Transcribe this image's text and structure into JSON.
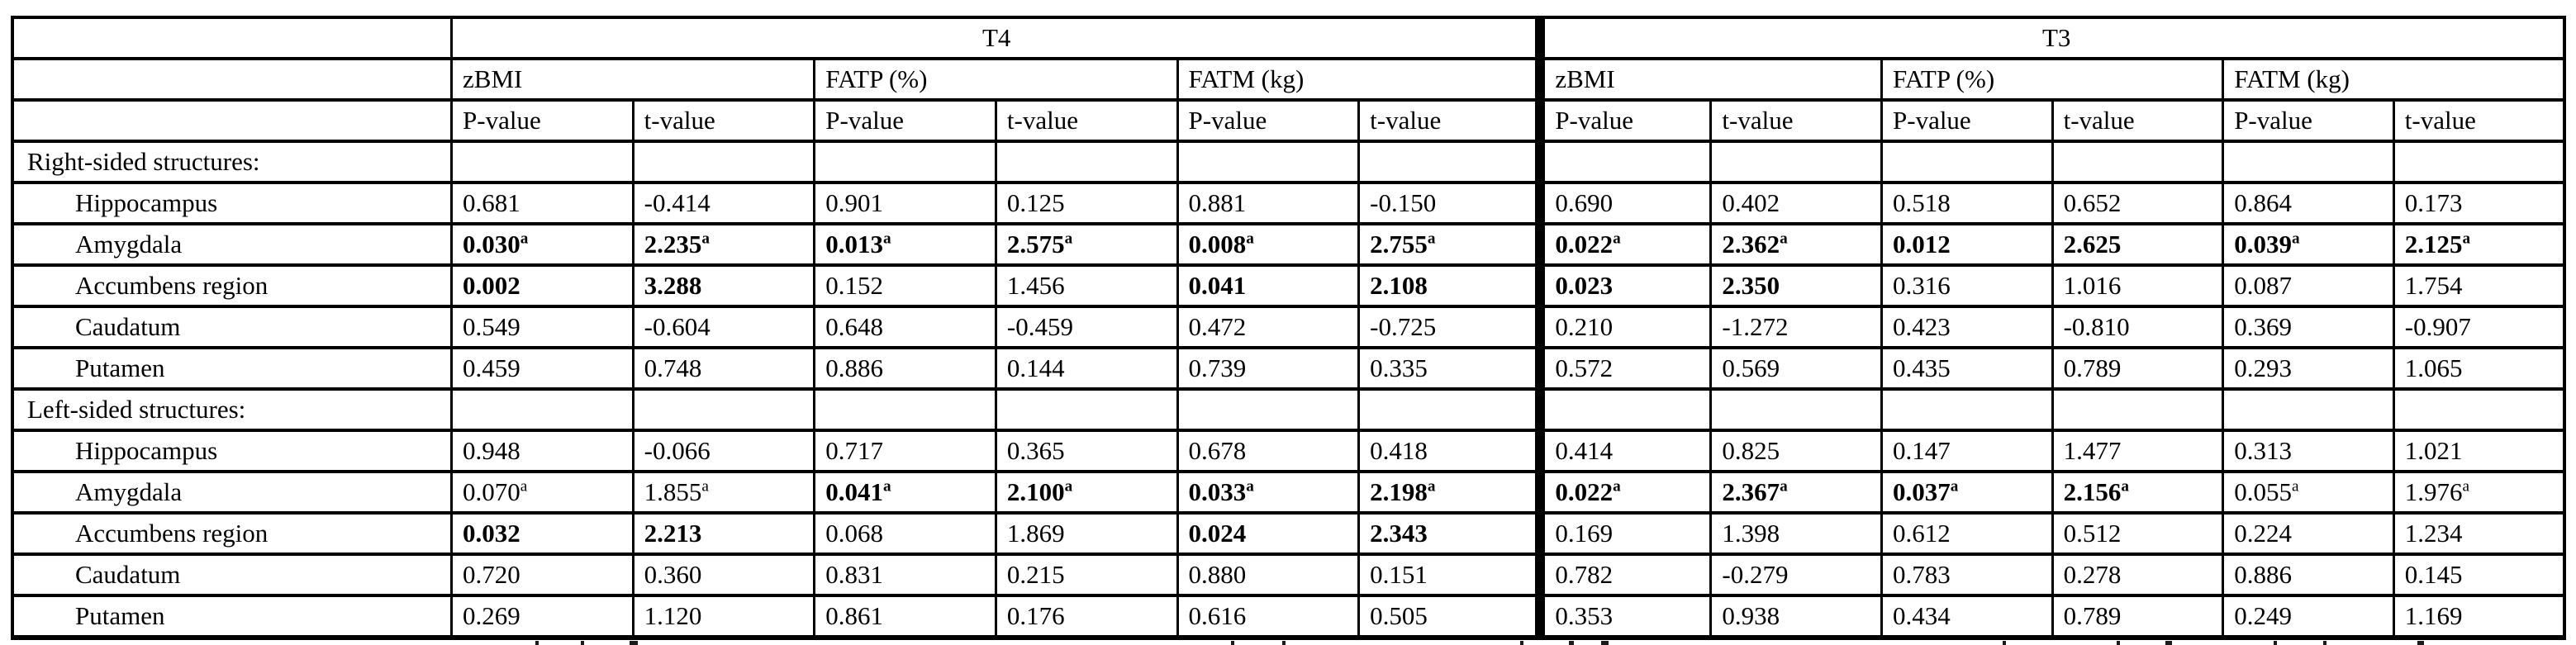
{
  "table": {
    "col_groups": [
      {
        "label": "T4",
        "measures": [
          {
            "label": "zBMI"
          },
          {
            "label": "FATP (%)"
          },
          {
            "label": "FATM (kg)"
          }
        ]
      },
      {
        "label": "T3",
        "measures": [
          {
            "label": "zBMI"
          },
          {
            "label": "FATP (%)"
          },
          {
            "label": "FATM (kg)"
          }
        ]
      }
    ],
    "stat_labels": {
      "p": "P-value",
      "t": "t-value"
    },
    "sections": [
      {
        "label": "Right-sided structures:",
        "rows": [
          {
            "label": "Hippocampus",
            "cells": [
              {
                "v": "0.681"
              },
              {
                "v": "-0.414"
              },
              {
                "v": "0.901"
              },
              {
                "v": "0.125"
              },
              {
                "v": "0.881"
              },
              {
                "v": "-0.150"
              },
              {
                "v": "0.690"
              },
              {
                "v": "0.402"
              },
              {
                "v": "0.518"
              },
              {
                "v": "0.652"
              },
              {
                "v": "0.864"
              },
              {
                "v": "0.173"
              }
            ]
          },
          {
            "label": "Amygdala",
            "cells": [
              {
                "v": "0.030",
                "b": true,
                "sup": "a"
              },
              {
                "v": "2.235",
                "b": true,
                "sup": "a"
              },
              {
                "v": "0.013",
                "b": true,
                "sup": "a"
              },
              {
                "v": "2.575",
                "b": true,
                "sup": "a"
              },
              {
                "v": "0.008",
                "b": true,
                "sup": "a"
              },
              {
                "v": "2.755",
                "b": true,
                "sup": "a"
              },
              {
                "v": "0.022",
                "b": true,
                "sup": "a"
              },
              {
                "v": "2.362",
                "b": true,
                "sup": "a"
              },
              {
                "v": "0.012",
                "b": true
              },
              {
                "v": "2.625",
                "b": true
              },
              {
                "v": "0.039",
                "b": true,
                "sup": "a"
              },
              {
                "v": "2.125",
                "b": true,
                "sup": "a"
              }
            ]
          },
          {
            "label": "Accumbens region",
            "cells": [
              {
                "v": "0.002",
                "b": true
              },
              {
                "v": "3.288",
                "b": true
              },
              {
                "v": "0.152"
              },
              {
                "v": "1.456"
              },
              {
                "v": "0.041",
                "b": true
              },
              {
                "v": "2.108",
                "b": true
              },
              {
                "v": "0.023",
                "b": true
              },
              {
                "v": "2.350",
                "b": true
              },
              {
                "v": "0.316"
              },
              {
                "v": "1.016"
              },
              {
                "v": "0.087"
              },
              {
                "v": "1.754"
              }
            ]
          },
          {
            "label": "Caudatum",
            "cells": [
              {
                "v": "0.549"
              },
              {
                "v": "-0.604"
              },
              {
                "v": "0.648"
              },
              {
                "v": "-0.459"
              },
              {
                "v": "0.472"
              },
              {
                "v": "-0.725"
              },
              {
                "v": "0.210"
              },
              {
                "v": "-1.272"
              },
              {
                "v": "0.423"
              },
              {
                "v": "-0.810"
              },
              {
                "v": "0.369"
              },
              {
                "v": "-0.907"
              }
            ]
          },
          {
            "label": "Putamen",
            "cells": [
              {
                "v": "0.459"
              },
              {
                "v": "0.748"
              },
              {
                "v": "0.886"
              },
              {
                "v": "0.144"
              },
              {
                "v": "0.739"
              },
              {
                "v": "0.335"
              },
              {
                "v": "0.572"
              },
              {
                "v": "0.569"
              },
              {
                "v": "0.435"
              },
              {
                "v": "0.789"
              },
              {
                "v": "0.293"
              },
              {
                "v": "1.065"
              }
            ]
          }
        ]
      },
      {
        "label": "Left-sided structures:",
        "rows": [
          {
            "label": "Hippocampus",
            "cells": [
              {
                "v": "0.948"
              },
              {
                "v": "-0.066"
              },
              {
                "v": "0.717"
              },
              {
                "v": "0.365"
              },
              {
                "v": "0.678"
              },
              {
                "v": "0.418"
              },
              {
                "v": "0.414"
              },
              {
                "v": "0.825"
              },
              {
                "v": "0.147"
              },
              {
                "v": "1.477"
              },
              {
                "v": "0.313"
              },
              {
                "v": "1.021"
              }
            ]
          },
          {
            "label": "Amygdala",
            "cells": [
              {
                "v": "0.070",
                "sup": "a"
              },
              {
                "v": "1.855",
                "sup": "a"
              },
              {
                "v": "0.041",
                "b": true,
                "sup": "a"
              },
              {
                "v": "2.100",
                "b": true,
                "sup": "a"
              },
              {
                "v": "0.033",
                "b": true,
                "sup": "a"
              },
              {
                "v": "2.198",
                "b": true,
                "sup": "a"
              },
              {
                "v": "0.022",
                "b": true,
                "sup": "a"
              },
              {
                "v": "2.367",
                "b": true,
                "sup": "a"
              },
              {
                "v": "0.037",
                "b": true,
                "sup": "a"
              },
              {
                "v": "2.156",
                "b": true,
                "sup": "a"
              },
              {
                "v": "0.055",
                "sup": "a"
              },
              {
                "v": "1.976",
                "sup": "a"
              }
            ]
          },
          {
            "label": "Accumbens region",
            "cells": [
              {
                "v": "0.032",
                "b": true
              },
              {
                "v": "2.213",
                "b": true
              },
              {
                "v": "0.068"
              },
              {
                "v": "1.869"
              },
              {
                "v": "0.024",
                "b": true
              },
              {
                "v": "2.343",
                "b": true
              },
              {
                "v": "0.169"
              },
              {
                "v": "1.398"
              },
              {
                "v": "0.612"
              },
              {
                "v": "0.512"
              },
              {
                "v": "0.224"
              },
              {
                "v": "1.234"
              }
            ]
          },
          {
            "label": "Caudatum",
            "cells": [
              {
                "v": "0.720"
              },
              {
                "v": "0.360"
              },
              {
                "v": "0.831"
              },
              {
                "v": "0.215"
              },
              {
                "v": "0.880"
              },
              {
                "v": "0.151"
              },
              {
                "v": "0.782"
              },
              {
                "v": "-0.279"
              },
              {
                "v": "0.783"
              },
              {
                "v": "0.278"
              },
              {
                "v": "0.886"
              },
              {
                "v": "0.145"
              }
            ]
          },
          {
            "label": "Putamen",
            "cells": [
              {
                "v": "0.269"
              },
              {
                "v": "1.120"
              },
              {
                "v": "0.861"
              },
              {
                "v": "0.176"
              },
              {
                "v": "0.616"
              },
              {
                "v": "0.505"
              },
              {
                "v": "0.353"
              },
              {
                "v": "0.938"
              },
              {
                "v": "0.434"
              },
              {
                "v": "0.789"
              },
              {
                "v": "0.249"
              },
              {
                "v": "1.169"
              }
            ]
          }
        ]
      }
    ]
  },
  "colors": {
    "border": "#000000",
    "background": "#ffffff",
    "text": "#000000"
  }
}
